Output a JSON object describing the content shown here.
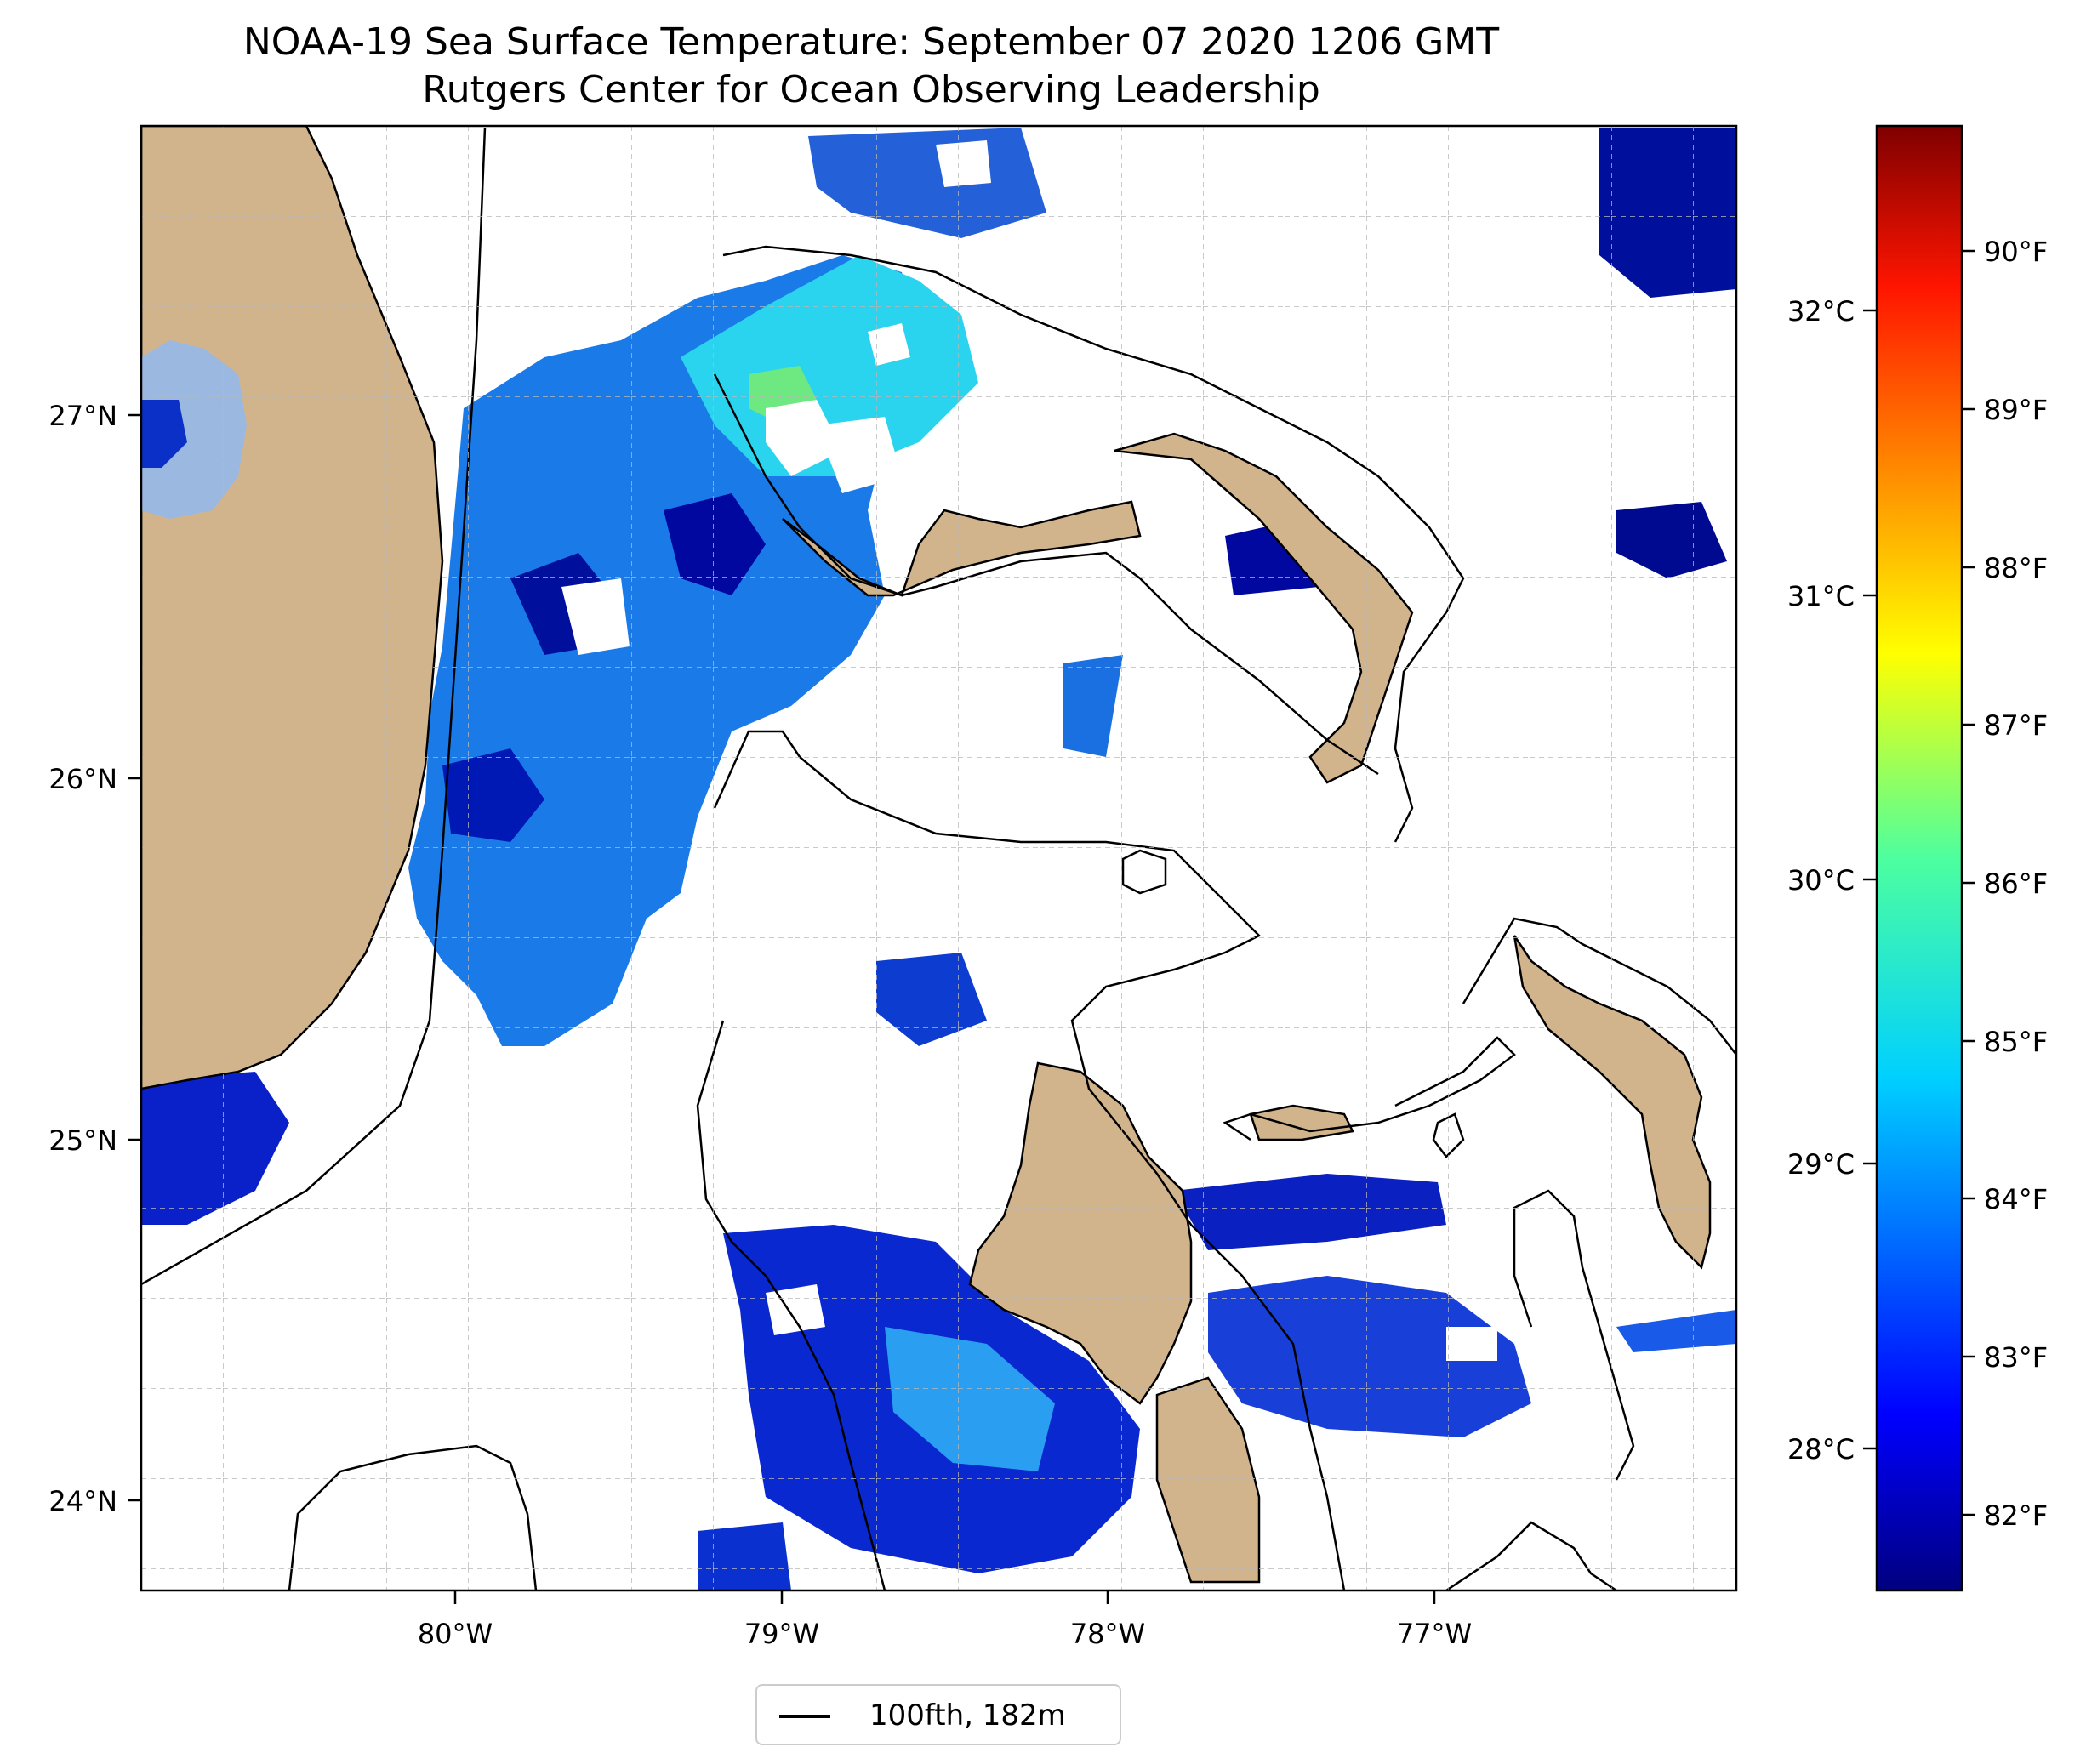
{
  "title": {
    "line1": "NOAA-19 Sea Surface Temperature: September 07 2020 1206 GMT",
    "line2": "Rutgers Center for Ocean Observing Leadership"
  },
  "map": {
    "lat_ticks": [
      "27°N",
      "26°N",
      "25°N",
      "24°N"
    ],
    "lon_ticks": [
      "80°W",
      "79°W",
      "78°W",
      "77°W"
    ],
    "land_color": "#d2b48c",
    "lake_color": "#9ab8e0"
  },
  "colorbar": {
    "celsius_ticks": [
      "32°C",
      "31°C",
      "30°C",
      "29°C",
      "28°C"
    ],
    "fahrenheit_ticks": [
      "90°F",
      "89°F",
      "88°F",
      "87°F",
      "86°F",
      "85°F",
      "84°F",
      "83°F",
      "82°F"
    ],
    "colormap": "jet"
  },
  "legend": {
    "label": "100fth, 182m"
  }
}
